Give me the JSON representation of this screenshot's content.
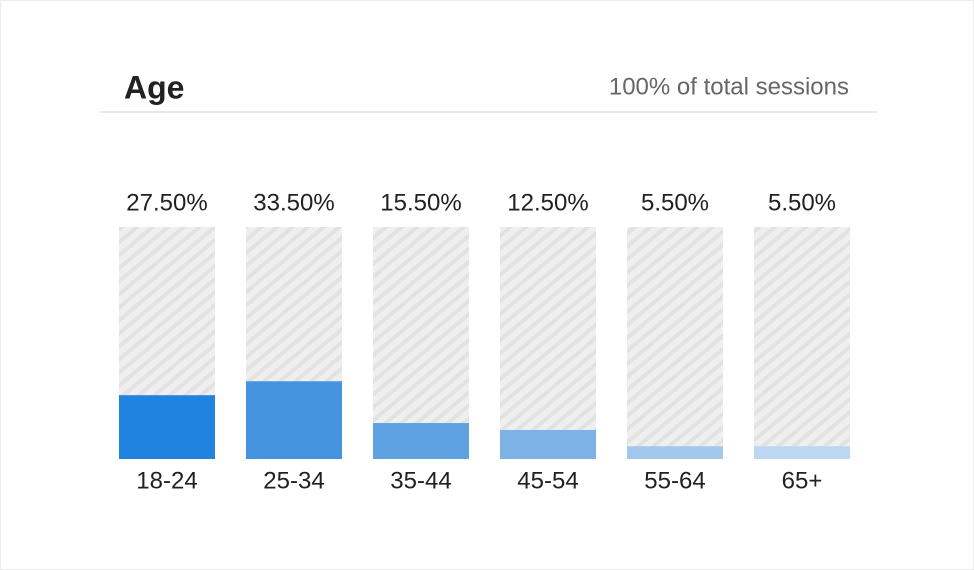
{
  "chart_data": {
    "type": "bar",
    "title": "Age",
    "subtitle": "100% of total sessions",
    "categories": [
      "18-24",
      "25-34",
      "35-44",
      "45-54",
      "55-64",
      "65+"
    ],
    "values": [
      27.5,
      33.5,
      15.5,
      12.5,
      5.5,
      5.5
    ],
    "value_labels": [
      "27.50%",
      "33.50%",
      "15.50%",
      "12.50%",
      "5.50%",
      "5.50%"
    ],
    "colors": [
      "#2083df",
      "#4393de",
      "#5ea2e1",
      "#7db2e6",
      "#a3c8ee",
      "#bcd7f2"
    ],
    "ylim": [
      0,
      100
    ]
  }
}
